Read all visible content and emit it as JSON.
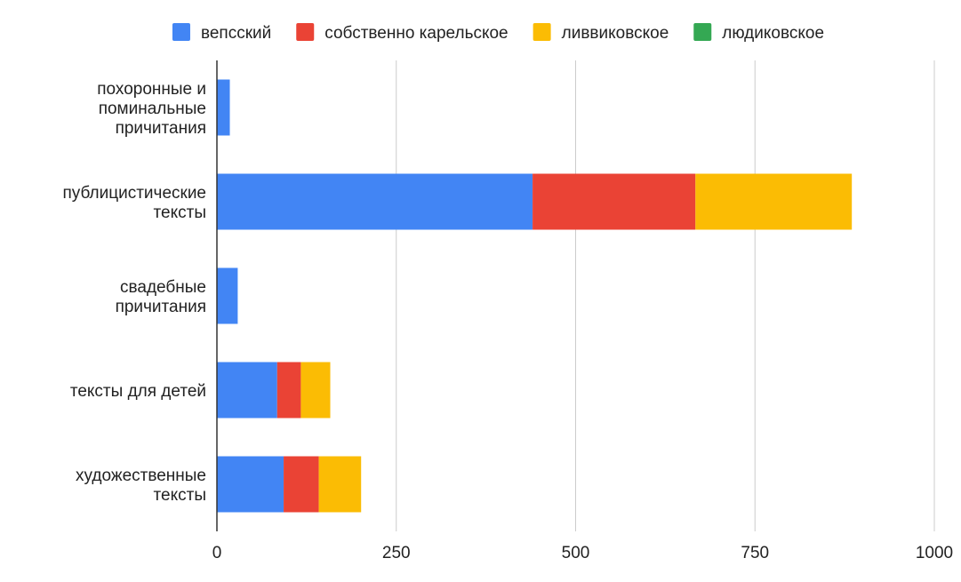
{
  "chart_data": {
    "type": "bar",
    "orientation": "horizontal",
    "stacked": true,
    "categories": [
      "похоронные и поминальные причитания",
      "публицистические тексты",
      "свадебные причитания",
      "тексты для детей",
      "художественные тексты"
    ],
    "series": [
      {
        "name": "вепсский",
        "color": "#4285F4",
        "values": [
          18,
          440,
          29,
          84,
          93
        ]
      },
      {
        "name": "собственно карельское",
        "color": "#EA4335",
        "values": [
          0,
          227,
          0,
          33,
          49
        ]
      },
      {
        "name": "ливвиковское",
        "color": "#FBBC04",
        "values": [
          0,
          218,
          0,
          41,
          59
        ]
      },
      {
        "name": "людиковское",
        "color": "#34A853",
        "values": [
          0,
          0,
          0,
          0,
          0
        ]
      }
    ],
    "xlim": [
      0,
      1000
    ],
    "xticks": [
      "0",
      "250",
      "500",
      "750",
      "1000"
    ],
    "title": "",
    "xlabel": "",
    "ylabel": "",
    "grid": "vertical",
    "legend_position": "top"
  }
}
